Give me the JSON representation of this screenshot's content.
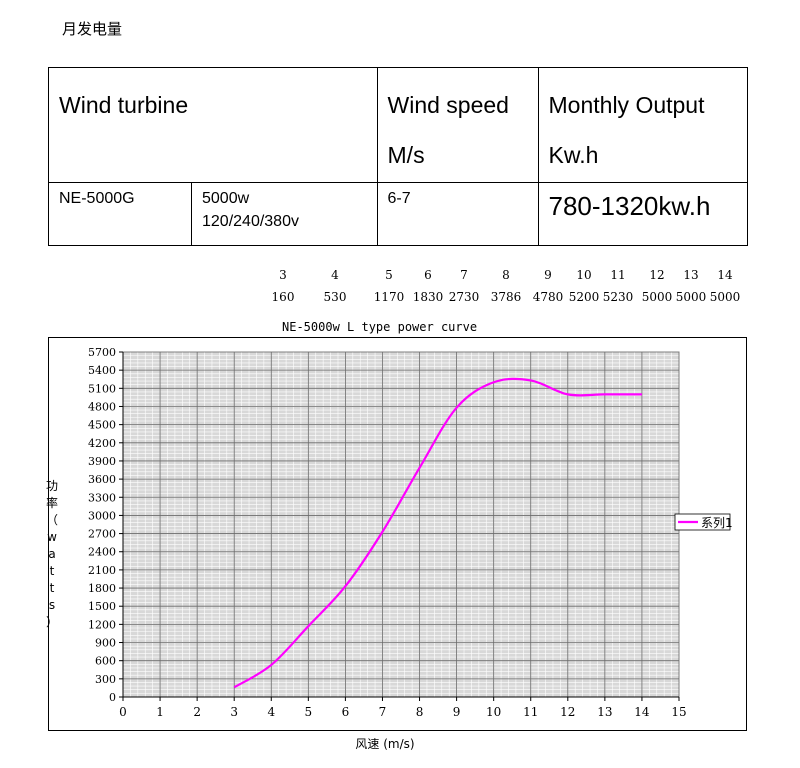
{
  "heading": "月发电量",
  "table": {
    "headers": {
      "turbine": "Wind turbine",
      "speed_line1": "Wind speed",
      "speed_line2": "M/s",
      "output_line1": "Monthly Output",
      "output_line2": "Kw.h"
    },
    "row": {
      "model": "NE-5000G",
      "spec_line1": "5000w",
      "spec_line2": "120/240/380v",
      "speed": "6-7",
      "output": "780-1320kw.h"
    }
  },
  "speed_table": {
    "speeds": [
      "3",
      "4",
      "5",
      "6",
      "7",
      "8",
      "9",
      "10",
      "11",
      "12",
      "13",
      "14"
    ],
    "powers": [
      "160",
      "530",
      "1170",
      "1830",
      "2730",
      "3786",
      "4780",
      "5200",
      "5230",
      "5000",
      "5000",
      "5000"
    ]
  },
  "chart_data": {
    "type": "line",
    "title": "NE-5000w L type power curve",
    "xlabel": "风速 (m/s)",
    "ylabel": "功率（watts）",
    "xlim": [
      0,
      15
    ],
    "ylim": [
      0,
      5700
    ],
    "x_ticks": [
      0,
      1,
      2,
      3,
      4,
      5,
      6,
      7,
      8,
      9,
      10,
      11,
      12,
      13,
      14,
      15
    ],
    "y_ticks": [
      0,
      300,
      600,
      900,
      1200,
      1500,
      1800,
      2100,
      2400,
      2700,
      3000,
      3300,
      3600,
      3900,
      4200,
      4500,
      4800,
      5100,
      5400,
      5700
    ],
    "grid": true,
    "legend_position": "right",
    "series": [
      {
        "name": "系列1",
        "color": "#ff00ff",
        "x": [
          3,
          4,
          5,
          6,
          7,
          8,
          9,
          10,
          11,
          12,
          13,
          14
        ],
        "y": [
          160,
          530,
          1170,
          1830,
          2730,
          3786,
          4780,
          5200,
          5230,
          5000,
          5000,
          5000
        ]
      }
    ]
  }
}
